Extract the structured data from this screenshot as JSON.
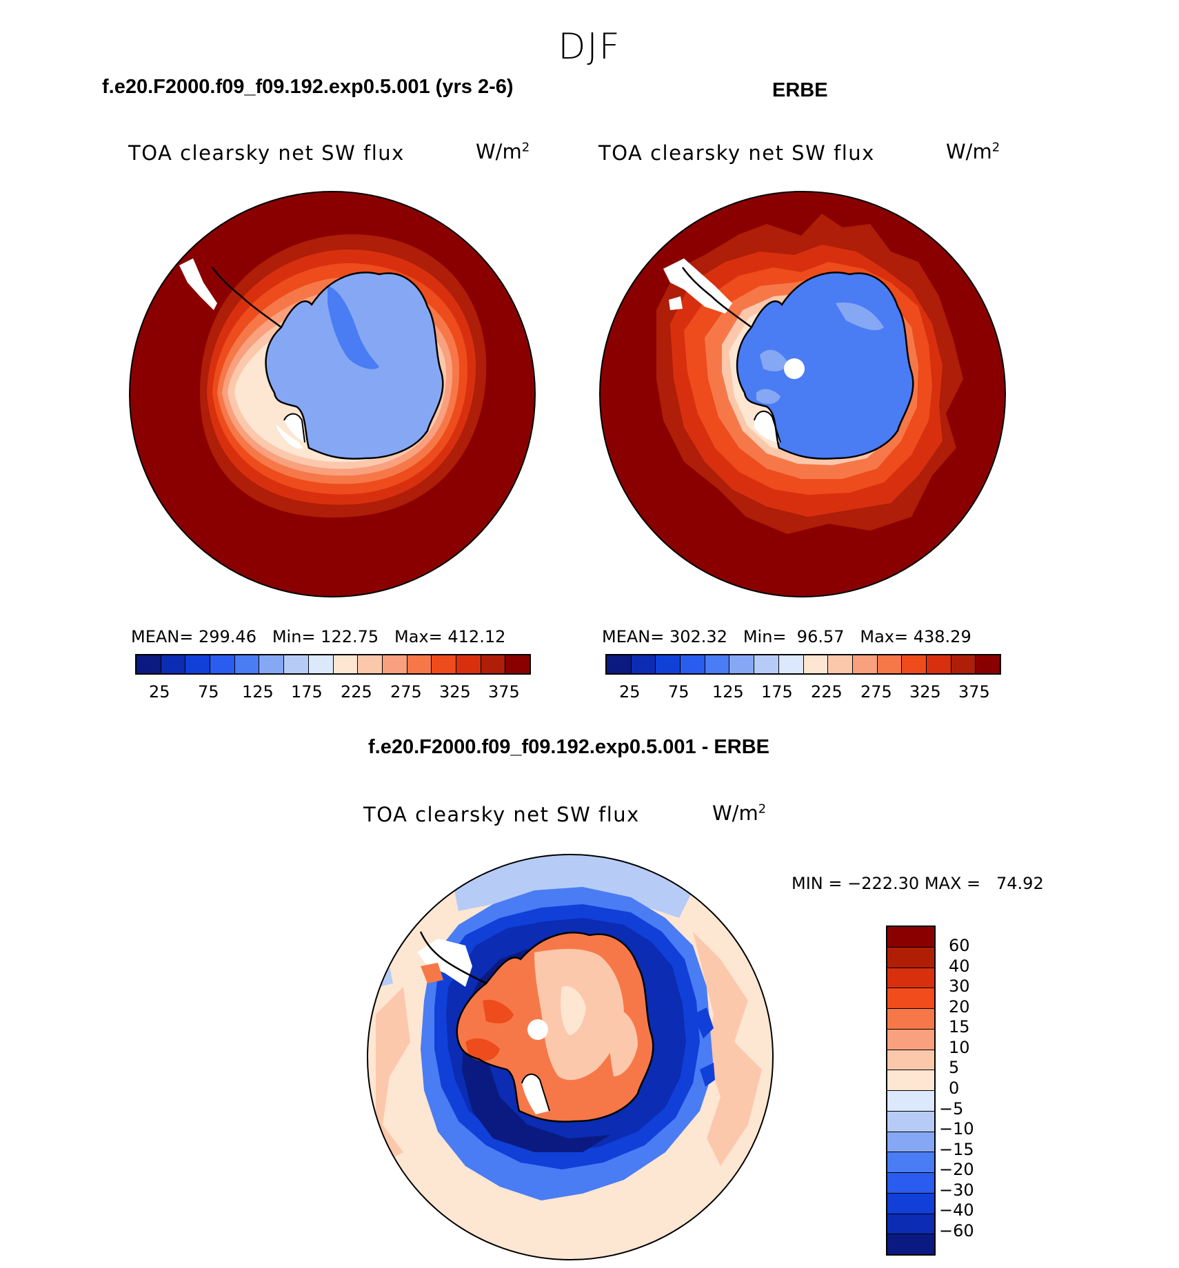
{
  "page": {
    "season": "DJF"
  },
  "panels": {
    "model": {
      "title": "f.e20.F2000.f09_f09.192.exp0.5.001 (yrs 2-6)",
      "variable": "TOA clearsky net SW flux",
      "unit": "W/m",
      "unit_exp": "2",
      "stats": "MEAN= 299.46   Min= 122.75   Max= 412.12"
    },
    "obs": {
      "title": "ERBE",
      "variable": "TOA clearsky net SW flux",
      "unit": "W/m",
      "unit_exp": "2",
      "stats": "MEAN= 302.32   Min=  96.57   Max= 438.29"
    },
    "diff": {
      "title": "f.e20.F2000.f09_f09.192.exp0.5.001 - ERBE",
      "variable": "TOA clearsky net SW flux",
      "unit": "W/m",
      "unit_exp": "2",
      "stats": "MIN = −222.30 MAX =   74.92"
    }
  },
  "chart_data": [
    {
      "type": "heatmap",
      "title": "f.e20.F2000.f09_f09.192.exp0.5.001 (yrs 2-6)",
      "projection": "south polar stereographic",
      "region": "Antarctica",
      "mean": 299.46,
      "min": 122.75,
      "max": 412.12,
      "colorbar": {
        "orientation": "horizontal",
        "tick_labels": [
          "25",
          "75",
          "125",
          "175",
          "225",
          "275",
          "325",
          "375"
        ],
        "colors": [
          "#0a1a80",
          "#0b2cb3",
          "#1040d8",
          "#2a5cf0",
          "#4a7cf4",
          "#86a8f4",
          "#b6ccf6",
          "#dce8fb",
          "#fde6d2",
          "#fcc8ac",
          "#f9a07e",
          "#f67848",
          "#ee4c1c",
          "#d8300f",
          "#ae1e08",
          "#8a0000"
        ]
      }
    },
    {
      "type": "heatmap",
      "title": "ERBE",
      "projection": "south polar stereographic",
      "region": "Antarctica",
      "mean": 302.32,
      "min": 96.57,
      "max": 438.29,
      "colorbar": {
        "orientation": "horizontal",
        "tick_labels": [
          "25",
          "75",
          "125",
          "175",
          "225",
          "275",
          "325",
          "375"
        ],
        "colors": [
          "#0a1a80",
          "#0b2cb3",
          "#1040d8",
          "#2a5cf0",
          "#4a7cf4",
          "#86a8f4",
          "#b6ccf6",
          "#dce8fb",
          "#fde6d2",
          "#fcc8ac",
          "#f9a07e",
          "#f67848",
          "#ee4c1c",
          "#d8300f",
          "#ae1e08",
          "#8a0000"
        ]
      }
    },
    {
      "type": "heatmap",
      "title": "f.e20.F2000.f09_f09.192.exp0.5.001 - ERBE",
      "projection": "south polar stereographic",
      "region": "Antarctica",
      "min": -222.3,
      "max": 74.92,
      "colorbar": {
        "orientation": "vertical",
        "tick_labels": [
          "60",
          "40",
          "30",
          "20",
          "15",
          "10",
          "5",
          "0",
          "−5",
          "−10",
          "−15",
          "−20",
          "−30",
          "−40",
          "−60"
        ],
        "colors": [
          "#8a0000",
          "#b01e06",
          "#d8300f",
          "#f04c1c",
          "#f67848",
          "#f9a07e",
          "#fcc8ac",
          "#fde6d2",
          "#dce8fb",
          "#b6ccf6",
          "#86a8f4",
          "#4a7cf4",
          "#2a5cf0",
          "#1040d8",
          "#0b2cb3",
          "#0a1a80"
        ]
      }
    }
  ]
}
